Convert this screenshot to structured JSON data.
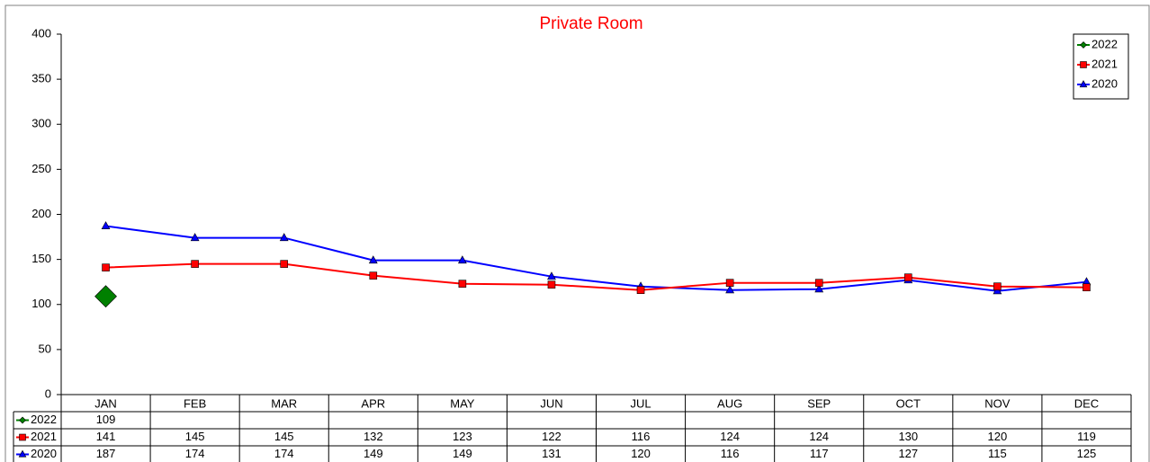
{
  "chart_data": {
    "type": "line",
    "title": "Private Room",
    "categories": [
      "JAN",
      "FEB",
      "MAR",
      "APR",
      "MAY",
      "JUN",
      "JUL",
      "AUG",
      "SEP",
      "OCT",
      "NOV",
      "DEC"
    ],
    "series": [
      {
        "name": "2022",
        "color": "#008000",
        "marker": "diamond",
        "values": [
          109,
          null,
          null,
          null,
          null,
          null,
          null,
          null,
          null,
          null,
          null,
          null
        ]
      },
      {
        "name": "2021",
        "color": "#ff0000",
        "marker": "square",
        "values": [
          141,
          145,
          145,
          132,
          123,
          122,
          116,
          124,
          124,
          130,
          120,
          119
        ]
      },
      {
        "name": "2020",
        "color": "#0000ff",
        "marker": "triangle",
        "values": [
          187,
          174,
          174,
          149,
          149,
          131,
          120,
          116,
          117,
          127,
          115,
          125
        ]
      }
    ],
    "ylim": [
      0,
      400
    ],
    "yticks": [
      0,
      50,
      100,
      150,
      200,
      250,
      300,
      350,
      400
    ],
    "legend": "top-right",
    "data_table": true
  }
}
